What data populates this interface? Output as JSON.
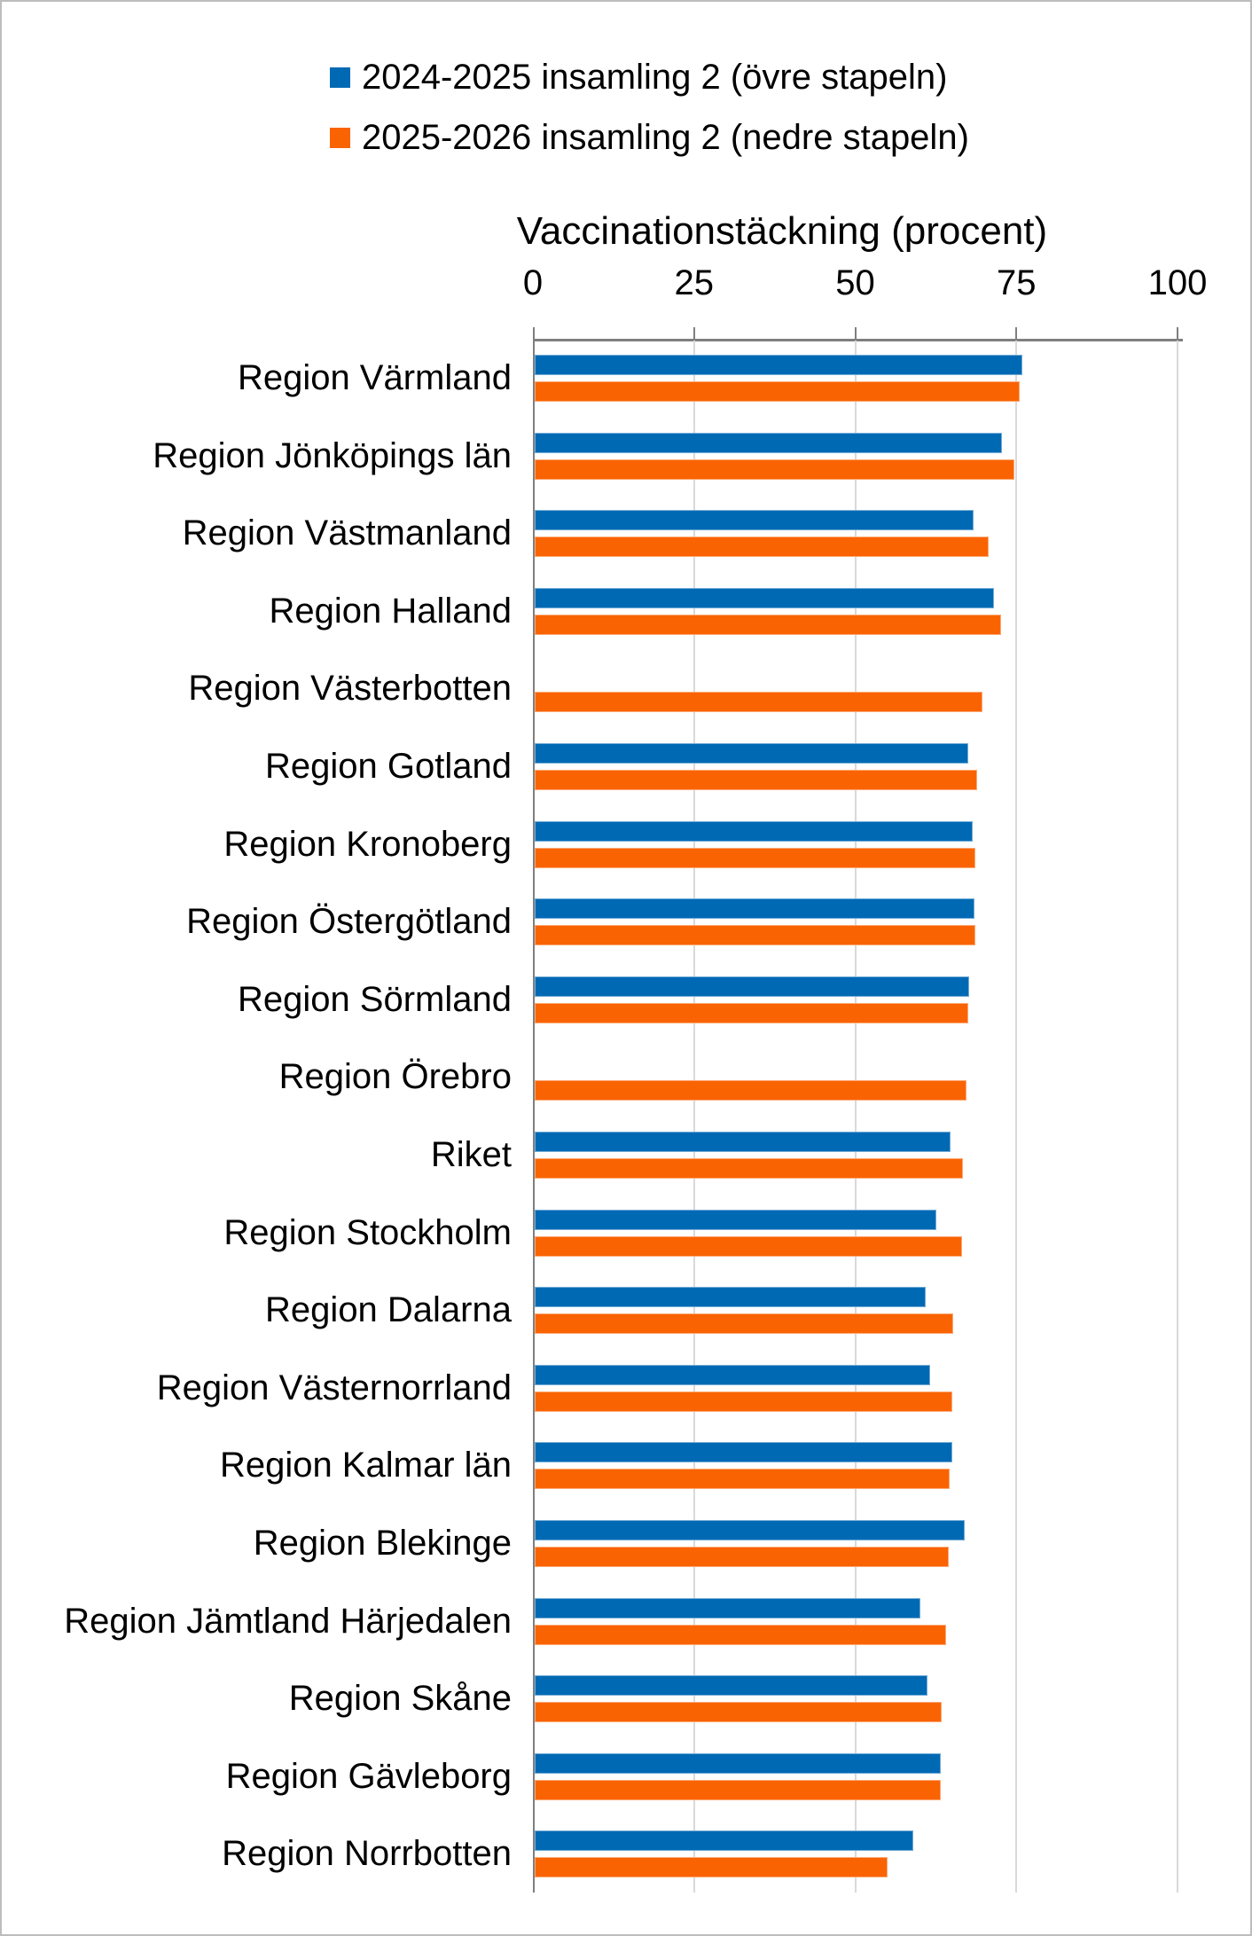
{
  "legend": {
    "items": [
      {
        "label": "2024-2025 insamling 2 (övre stapeln)",
        "color": "#0069B4"
      },
      {
        "label": "2025-2026 insamling 2 (nedre stapeln)",
        "color": "#FA6302"
      }
    ]
  },
  "colors": {
    "series_blue": "#0069B4",
    "series_orange": "#FA6302",
    "axis": "#7F7F7F",
    "gridline": "#D9D9D9",
    "frame_border": "#BDBDBD",
    "text": "#000000"
  },
  "chart_data": {
    "type": "bar",
    "orientation": "horizontal",
    "title": "Vaccinationstäckning (procent)",
    "xlabel": "Vaccinationstäckning (procent)",
    "ylabel": "",
    "x_axis": {
      "min": 0,
      "max": 100,
      "ticks": [
        0,
        25,
        50,
        75,
        100
      ],
      "position": "top"
    },
    "grid": true,
    "legend_position": "top",
    "categories": [
      "Region Värmland",
      "Region Jönköpings län",
      "Region Västmanland",
      "Region Halland",
      "Region Västerbotten",
      "Region Gotland",
      "Region Kronoberg",
      "Region Östergötland",
      "Region Sörmland",
      "Region Örebro",
      "Riket",
      "Region Stockholm",
      "Region Dalarna",
      "Region Västernorrland",
      "Region Kalmar län",
      "Region Blekinge",
      "Region Jämtland Härjedalen",
      "Region Skåne",
      "Region Gävleborg",
      "Region Norrbotten"
    ],
    "series": [
      {
        "name": "2024-2025 insamling 2 (övre stapeln)",
        "color": "#0069B4",
        "values": [
          75.7,
          72.5,
          68.1,
          71.2,
          null,
          67.3,
          67.9,
          68.2,
          67.4,
          null,
          64.5,
          62.3,
          60.6,
          61.3,
          64.8,
          66.7,
          59.9,
          61.0,
          63.0,
          58.8
        ]
      },
      {
        "name": "2025-2026 insamling 2 (nedre stapeln)",
        "color": "#FA6302",
        "values": [
          75.2,
          74.4,
          70.4,
          72.4,
          69.4,
          68.7,
          68.4,
          68.4,
          67.2,
          67.0,
          66.5,
          66.3,
          64.9,
          64.8,
          64.4,
          64.2,
          63.8,
          63.1,
          63.0,
          54.8
        ]
      }
    ]
  }
}
